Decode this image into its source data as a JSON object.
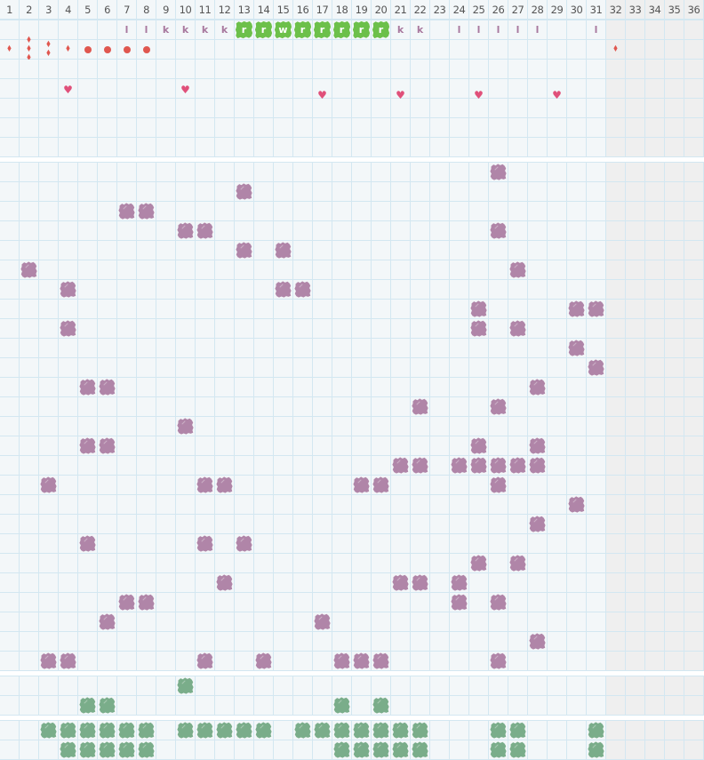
{
  "columns": [
    "1",
    "2",
    "3",
    "4",
    "5",
    "6",
    "7",
    "8",
    "9",
    "10",
    "11",
    "12",
    "13",
    "14",
    "15",
    "16",
    "17",
    "18",
    "19",
    "20",
    "21",
    "22",
    "23",
    "24",
    "25",
    "26",
    "27",
    "28",
    "29",
    "30",
    "31",
    "32",
    "33",
    "34",
    "35",
    "36"
  ],
  "shaded_from_column": 32,
  "colors": {
    "grid": "#d3e7f1",
    "cell": "#f3f7f9",
    "shaded": "#efefef",
    "purple": "#b085a8",
    "green_tile": "#6cc04a",
    "green_blob": "#7aad8a",
    "drop": "#e0574f",
    "heart": "#e0507a"
  },
  "section_a": {
    "rows": [
      [
        {
          "col": 7,
          "type": "letter",
          "label": "l"
        },
        {
          "col": 8,
          "type": "letter",
          "label": "l"
        },
        {
          "col": 9,
          "type": "letter",
          "label": "k"
        },
        {
          "col": 10,
          "type": "letter",
          "label": "k"
        },
        {
          "col": 11,
          "type": "letter",
          "label": "k"
        },
        {
          "col": 12,
          "type": "letter",
          "label": "k"
        },
        {
          "col": 13,
          "type": "tile",
          "label": "r"
        },
        {
          "col": 14,
          "type": "tile",
          "label": "r"
        },
        {
          "col": 15,
          "type": "tile",
          "label": "w"
        },
        {
          "col": 16,
          "type": "tile",
          "label": "r"
        },
        {
          "col": 17,
          "type": "tile",
          "label": "r"
        },
        {
          "col": 18,
          "type": "tile",
          "label": "r"
        },
        {
          "col": 19,
          "type": "tile",
          "label": "r"
        },
        {
          "col": 20,
          "type": "tile",
          "label": "r"
        },
        {
          "col": 21,
          "type": "letter",
          "label": "k"
        },
        {
          "col": 22,
          "type": "letter",
          "label": "k"
        },
        {
          "col": 24,
          "type": "letter",
          "label": "l"
        },
        {
          "col": 25,
          "type": "letter",
          "label": "l"
        },
        {
          "col": 26,
          "type": "letter",
          "label": "l"
        },
        {
          "col": 27,
          "type": "letter",
          "label": "l"
        },
        {
          "col": 28,
          "type": "letter",
          "label": "l"
        },
        {
          "col": 31,
          "type": "letter",
          "label": "l"
        }
      ],
      [
        {
          "col": 1,
          "type": "drop",
          "count": 1
        },
        {
          "col": 2,
          "type": "drop",
          "count": 3
        },
        {
          "col": 3,
          "type": "drop",
          "count": 2
        },
        {
          "col": 4,
          "type": "drop",
          "count": 1
        },
        {
          "col": 5,
          "type": "dot"
        },
        {
          "col": 6,
          "type": "dot"
        },
        {
          "col": 7,
          "type": "dot"
        },
        {
          "col": 8,
          "type": "dot"
        },
        {
          "col": 32,
          "type": "drop",
          "count": 1
        }
      ],
      [],
      [
        {
          "col": 4,
          "type": "heart"
        },
        {
          "col": 10,
          "type": "heart"
        },
        {
          "col": 17,
          "type": "heart"
        },
        {
          "col": 21,
          "type": "heart"
        },
        {
          "col": 25,
          "type": "heart"
        },
        {
          "col": 29,
          "type": "heart"
        }
      ],
      [],
      [],
      []
    ]
  },
  "section_b": {
    "rows": [
      [
        26
      ],
      [
        13
      ],
      [
        7,
        8
      ],
      [
        10,
        11,
        26
      ],
      [
        13,
        15
      ],
      [
        2,
        27
      ],
      [
        4,
        15,
        16
      ],
      [
        25,
        30,
        31
      ],
      [
        4,
        25,
        27
      ],
      [
        30
      ],
      [
        31
      ],
      [
        5,
        6,
        28
      ],
      [
        22,
        26
      ],
      [
        10
      ],
      [
        5,
        6,
        25,
        28
      ],
      [
        21,
        22,
        24,
        25,
        26,
        27,
        28
      ],
      [
        3,
        11,
        12,
        19,
        20,
        26
      ],
      [
        30
      ],
      [
        28
      ],
      [
        5,
        11,
        13
      ],
      [
        25,
        27
      ],
      [
        12,
        21,
        22,
        24
      ],
      [
        7,
        8,
        24,
        26
      ],
      [
        6,
        17
      ],
      [
        28
      ],
      [
        3,
        4,
        11,
        14,
        18,
        19,
        20,
        26
      ]
    ]
  },
  "section_c": {
    "rows": [
      [
        10
      ],
      [
        5,
        6,
        18,
        20
      ]
    ]
  },
  "section_d": {
    "rows": [
      [
        3,
        4,
        5,
        6,
        7,
        8,
        10,
        11,
        12,
        13,
        14,
        16,
        17,
        18,
        19,
        20,
        21,
        22,
        26,
        27,
        31
      ],
      [
        4,
        5,
        6,
        7,
        8,
        18,
        19,
        20,
        21,
        22,
        26,
        27,
        31
      ]
    ]
  }
}
